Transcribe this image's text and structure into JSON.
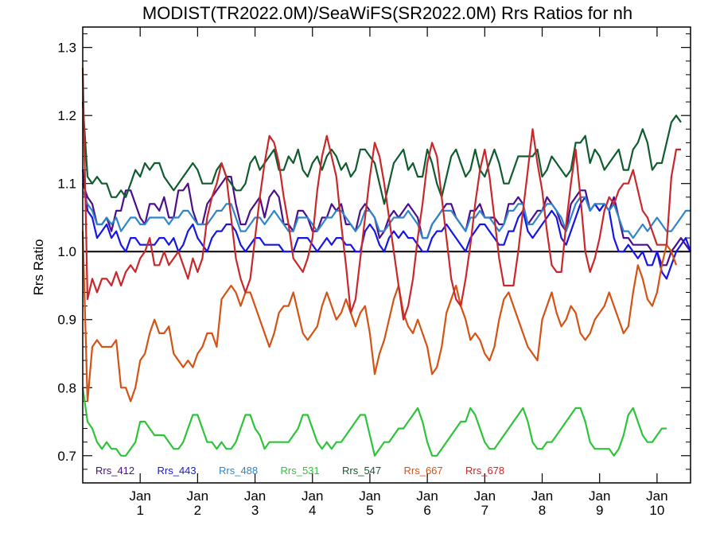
{
  "chart_data": {
    "type": "line",
    "title": "MODIST(TR2022.0M)/SeaWiFS(SR2022.0M)  Rrs Ratios for nh",
    "xlabel": "",
    "ylabel": "Rrs Ratio",
    "ylim": [
      0.66,
      1.33
    ],
    "yticks": [
      "0.7",
      "0.8",
      "0.9",
      "1.0",
      "1.1",
      "1.2",
      "1.3"
    ],
    "xlim": [
      0,
      127
    ],
    "xticks": [
      {
        "month": "Jan",
        "year": "1",
        "x": 12
      },
      {
        "month": "Jan",
        "year": "2",
        "x": 24
      },
      {
        "month": "Jan",
        "year": "3",
        "x": 36
      },
      {
        "month": "Jan",
        "year": "4",
        "x": 48
      },
      {
        "month": "Jan",
        "year": "5",
        "x": 60
      },
      {
        "month": "Jan",
        "year": "6",
        "x": 72
      },
      {
        "month": "Jan",
        "year": "7",
        "x": 84
      },
      {
        "month": "Jan",
        "year": "8",
        "x": 96
      },
      {
        "month": "Jan",
        "year": "9",
        "x": 108
      },
      {
        "month": "Jan",
        "year": "10",
        "x": 120
      }
    ],
    "reference_line": 1.0,
    "grid": false,
    "legend_position": "bottom-left",
    "series": [
      {
        "name": "Rrs_412",
        "color": "#4b0f8c",
        "values": [
          1.1,
          1.08,
          1.07,
          1.04,
          1.04,
          1.05,
          1.03,
          1.06,
          1.06,
          1.09,
          1.09,
          1.07,
          1.05,
          1.04,
          1.07,
          1.07,
          1.06,
          1.08,
          1.05,
          1.05,
          1.09,
          1.09,
          1.1,
          1.06,
          1.04,
          1.04,
          1.07,
          1.08,
          1.09,
          1.1,
          1.11,
          1.11,
          1.07,
          1.04,
          1.04,
          1.06,
          1.07,
          1.08,
          1.05,
          1.08,
          1.09,
          1.08,
          1.04,
          1.04,
          1.03,
          1.06,
          1.06,
          1.05,
          1.03,
          1.03,
          1.05,
          1.05,
          1.07,
          1.06,
          1.07,
          1.04,
          1.04,
          1.03,
          1.06,
          1.07,
          1.06,
          1.05,
          1.02,
          1.03,
          1.05,
          1.06,
          1.05,
          1.06,
          1.07,
          1.06,
          1.05,
          1.02,
          1.02,
          1.04,
          1.05,
          1.06,
          1.07,
          1.07,
          1.05,
          1.04,
          1.03,
          1.06,
          1.06,
          1.07,
          1.05,
          1.05,
          1.05,
          1.04,
          1.04,
          1.07,
          1.07,
          1.08,
          1.07,
          1.04,
          1.05,
          1.06,
          1.06,
          1.08,
          1.07,
          1.06,
          1.04,
          1.03,
          1.07,
          1.08,
          1.09,
          1.09,
          1.06,
          1.07,
          1.06,
          1.07,
          1.06,
          1.08,
          1.05,
          1.02,
          1.02,
          1.01,
          1.01,
          1.01,
          1.01,
          1.0,
          1.0,
          0.98,
          0.98,
          1.0,
          1.01,
          1.02,
          1.01,
          1.0
        ]
      },
      {
        "name": "Rrs_443",
        "color": "#1515e6",
        "values": [
          1.12,
          1.06,
          1.05,
          1.02,
          1.03,
          1.04,
          1.02,
          1.03,
          1.01,
          1.0,
          1.02,
          1.02,
          1.01,
          1.01,
          1.01,
          1.01,
          1.02,
          1.02,
          1.01,
          1.02,
          1.0,
          1.01,
          1.03,
          1.04,
          1.02,
          1.01,
          1.0,
          1.02,
          1.03,
          1.03,
          1.04,
          1.04,
          1.03,
          1.01,
          1.0,
          1.01,
          1.02,
          1.02,
          1.01,
          1.01,
          1.01,
          1.01,
          1.0,
          1.0,
          1.0,
          1.02,
          1.02,
          1.02,
          1.01,
          1.0,
          1.01,
          1.02,
          1.01,
          1.02,
          1.02,
          1.01,
          1.01,
          1.0,
          1.0,
          1.03,
          1.04,
          1.03,
          1.01,
          1.0,
          1.02,
          1.03,
          1.02,
          1.03,
          1.02,
          1.02,
          1.01,
          1.0,
          1.0,
          1.02,
          1.03,
          1.03,
          1.04,
          1.03,
          1.02,
          1.01,
          1.0,
          1.02,
          1.03,
          1.04,
          1.04,
          1.03,
          1.02,
          1.01,
          1.01,
          1.03,
          1.03,
          1.05,
          1.06,
          1.03,
          1.02,
          1.03,
          1.04,
          1.05,
          1.06,
          1.05,
          1.02,
          1.01,
          1.03,
          1.05,
          1.07,
          1.08,
          1.06,
          1.07,
          1.06,
          1.07,
          1.06,
          1.02,
          1.0,
          1.0,
          1.01,
          1.0,
          0.99,
          1.0,
          0.98,
          0.98,
          1.0,
          0.97,
          0.96,
          0.98,
          1.0,
          1.01,
          1.02,
          1.0
        ]
      },
      {
        "name": "Rrs_488",
        "color": "#2e86c9",
        "values": [
          1.09,
          1.07,
          1.06,
          1.04,
          1.04,
          1.05,
          1.04,
          1.05,
          1.03,
          1.04,
          1.05,
          1.05,
          1.04,
          1.04,
          1.05,
          1.05,
          1.05,
          1.05,
          1.04,
          1.05,
          1.05,
          1.06,
          1.06,
          1.05,
          1.04,
          1.04,
          1.04,
          1.05,
          1.06,
          1.06,
          1.07,
          1.07,
          1.05,
          1.03,
          1.03,
          1.04,
          1.05,
          1.05,
          1.04,
          1.05,
          1.06,
          1.05,
          1.04,
          1.03,
          1.03,
          1.05,
          1.05,
          1.05,
          1.04,
          1.03,
          1.04,
          1.05,
          1.05,
          1.06,
          1.06,
          1.05,
          1.04,
          1.03,
          1.04,
          1.06,
          1.06,
          1.05,
          1.03,
          1.03,
          1.04,
          1.05,
          1.05,
          1.05,
          1.06,
          1.05,
          1.04,
          1.02,
          1.02,
          1.04,
          1.05,
          1.06,
          1.06,
          1.06,
          1.05,
          1.04,
          1.03,
          1.05,
          1.05,
          1.06,
          1.05,
          1.05,
          1.04,
          1.03,
          1.04,
          1.06,
          1.06,
          1.07,
          1.07,
          1.04,
          1.04,
          1.05,
          1.06,
          1.07,
          1.07,
          1.06,
          1.05,
          1.03,
          1.05,
          1.07,
          1.08,
          1.08,
          1.06,
          1.07,
          1.07,
          1.07,
          1.06,
          1.07,
          1.05,
          1.03,
          1.03,
          1.02,
          1.03,
          1.04,
          1.03,
          1.04,
          1.05,
          1.04,
          1.03,
          1.03,
          1.04,
          1.05,
          1.06,
          1.06
        ]
      },
      {
        "name": "Rrs_531",
        "color": "#2ec43a",
        "values": [
          0.8,
          0.75,
          0.74,
          0.72,
          0.71,
          0.72,
          0.71,
          0.71,
          0.7,
          0.7,
          0.71,
          0.72,
          0.75,
          0.75,
          0.74,
          0.73,
          0.73,
          0.73,
          0.72,
          0.71,
          0.71,
          0.72,
          0.74,
          0.76,
          0.76,
          0.74,
          0.72,
          0.72,
          0.71,
          0.72,
          0.71,
          0.71,
          0.72,
          0.74,
          0.76,
          0.76,
          0.74,
          0.73,
          0.71,
          0.72,
          0.72,
          0.72,
          0.72,
          0.72,
          0.73,
          0.74,
          0.76,
          0.76,
          0.74,
          0.72,
          0.71,
          0.72,
          0.71,
          0.72,
          0.72,
          0.73,
          0.74,
          0.75,
          0.76,
          0.76,
          0.73,
          0.7,
          0.71,
          0.72,
          0.72,
          0.73,
          0.74,
          0.74,
          0.75,
          0.76,
          0.77,
          0.75,
          0.72,
          0.7,
          0.7,
          0.71,
          0.72,
          0.73,
          0.74,
          0.75,
          0.75,
          0.77,
          0.76,
          0.74,
          0.72,
          0.71,
          0.71,
          0.72,
          0.73,
          0.74,
          0.75,
          0.76,
          0.77,
          0.75,
          0.72,
          0.71,
          0.71,
          0.72,
          0.72,
          0.73,
          0.74,
          0.75,
          0.76,
          0.77,
          0.77,
          0.75,
          0.72,
          0.71,
          0.71,
          0.71,
          0.71,
          0.7,
          0.71,
          0.73,
          0.76,
          0.77,
          0.75,
          0.73,
          0.72,
          0.72,
          0.73,
          0.74,
          0.74
        ]
      },
      {
        "name": "Rrs_547",
        "color": "#0f5c2e",
        "values": [
          1.22,
          1.11,
          1.1,
          1.11,
          1.1,
          1.1,
          1.08,
          1.08,
          1.09,
          1.08,
          1.1,
          1.12,
          1.11,
          1.13,
          1.12,
          1.13,
          1.13,
          1.11,
          1.1,
          1.09,
          1.1,
          1.11,
          1.12,
          1.13,
          1.12,
          1.1,
          1.1,
          1.1,
          1.12,
          1.13,
          1.11,
          1.1,
          1.09,
          1.09,
          1.1,
          1.13,
          1.14,
          1.12,
          1.13,
          1.14,
          1.15,
          1.12,
          1.12,
          1.14,
          1.13,
          1.15,
          1.12,
          1.11,
          1.13,
          1.14,
          1.12,
          1.14,
          1.15,
          1.14,
          1.12,
          1.13,
          1.11,
          1.12,
          1.15,
          1.15,
          1.14,
          1.13,
          1.1,
          1.07,
          1.1,
          1.13,
          1.14,
          1.15,
          1.12,
          1.13,
          1.11,
          1.11,
          1.15,
          1.13,
          1.1,
          1.08,
          1.11,
          1.14,
          1.15,
          1.13,
          1.11,
          1.12,
          1.15,
          1.12,
          1.11,
          1.13,
          1.15,
          1.13,
          1.1,
          1.1,
          1.12,
          1.14,
          1.14,
          1.14,
          1.14,
          1.15,
          1.11,
          1.12,
          1.14,
          1.13,
          1.12,
          1.11,
          1.12,
          1.16,
          1.16,
          1.17,
          1.13,
          1.15,
          1.14,
          1.12,
          1.13,
          1.14,
          1.15,
          1.12,
          1.12,
          1.15,
          1.16,
          1.18,
          1.16,
          1.12,
          1.13,
          1.13,
          1.16,
          1.19,
          1.2,
          1.19
        ]
      },
      {
        "name": "Rrs_667",
        "color": "#d45314",
        "values": [
          1.03,
          0.78,
          0.86,
          0.87,
          0.86,
          0.86,
          0.86,
          0.87,
          0.8,
          0.8,
          0.78,
          0.8,
          0.84,
          0.85,
          0.88,
          0.9,
          0.88,
          0.88,
          0.89,
          0.85,
          0.84,
          0.83,
          0.84,
          0.83,
          0.85,
          0.86,
          0.88,
          0.88,
          0.86,
          0.93,
          0.94,
          0.95,
          0.94,
          0.92,
          0.94,
          0.94,
          0.92,
          0.9,
          0.88,
          0.86,
          0.88,
          0.91,
          0.92,
          0.92,
          0.94,
          0.91,
          0.88,
          0.87,
          0.88,
          0.89,
          0.92,
          0.94,
          0.92,
          0.9,
          0.91,
          0.93,
          0.91,
          0.89,
          0.91,
          0.92,
          0.88,
          0.82,
          0.85,
          0.87,
          0.9,
          0.93,
          0.95,
          0.91,
          0.89,
          0.88,
          0.9,
          0.88,
          0.86,
          0.82,
          0.83,
          0.86,
          0.91,
          0.93,
          0.95,
          0.92,
          0.9,
          0.87,
          0.88,
          0.87,
          0.85,
          0.84,
          0.86,
          0.9,
          0.93,
          0.94,
          0.92,
          0.9,
          0.88,
          0.86,
          0.85,
          0.84,
          0.9,
          0.92,
          0.94,
          0.91,
          0.89,
          0.9,
          0.92,
          0.91,
          0.88,
          0.87,
          0.88,
          0.9,
          0.91,
          0.92,
          0.94,
          0.92,
          0.9,
          0.88,
          0.89,
          0.94,
          0.98,
          0.96,
          0.93,
          0.92,
          0.94,
          0.98,
          1.01,
          1.0,
          0.98
        ]
      },
      {
        "name": "Rrs_678",
        "color": "#c8272b",
        "values": [
          1.27,
          0.93,
          0.96,
          0.94,
          0.96,
          0.96,
          0.95,
          0.97,
          0.95,
          0.97,
          0.98,
          0.97,
          0.99,
          1.0,
          1.02,
          0.98,
          0.98,
          1.0,
          0.98,
          0.99,
          1.0,
          0.98,
          0.96,
          0.99,
          0.97,
          0.99,
          1.05,
          1.08,
          1.1,
          1.13,
          1.11,
          1.05,
          0.99,
          0.96,
          0.94,
          0.96,
          1.02,
          1.08,
          1.13,
          1.17,
          1.16,
          1.13,
          1.08,
          1.04,
          0.99,
          0.98,
          0.97,
          0.99,
          1.02,
          1.09,
          1.14,
          1.17,
          1.14,
          1.11,
          1.04,
          0.98,
          0.91,
          0.93,
          0.99,
          1.05,
          1.11,
          1.16,
          1.14,
          1.1,
          1.05,
          1.0,
          0.95,
          0.9,
          0.92,
          0.96,
          1.02,
          1.07,
          1.13,
          1.16,
          1.14,
          1.08,
          1.02,
          0.96,
          0.93,
          0.92,
          0.96,
          1.01,
          1.07,
          1.12,
          1.15,
          1.11,
          1.05,
          0.99,
          0.95,
          0.95,
          0.95,
          1.0,
          1.06,
          1.12,
          1.18,
          1.13,
          1.09,
          1.03,
          0.98,
          0.97,
          0.97,
          1.04,
          1.1,
          1.15,
          1.08,
          1.0,
          0.97,
          0.99,
          1.02,
          1.06,
          1.08,
          1.07,
          1.09,
          1.1,
          1.1,
          1.12,
          1.09,
          1.06,
          1.05,
          1.03,
          1.01,
          1.01,
          1.01,
          1.11,
          1.15,
          1.15
        ]
      }
    ]
  }
}
